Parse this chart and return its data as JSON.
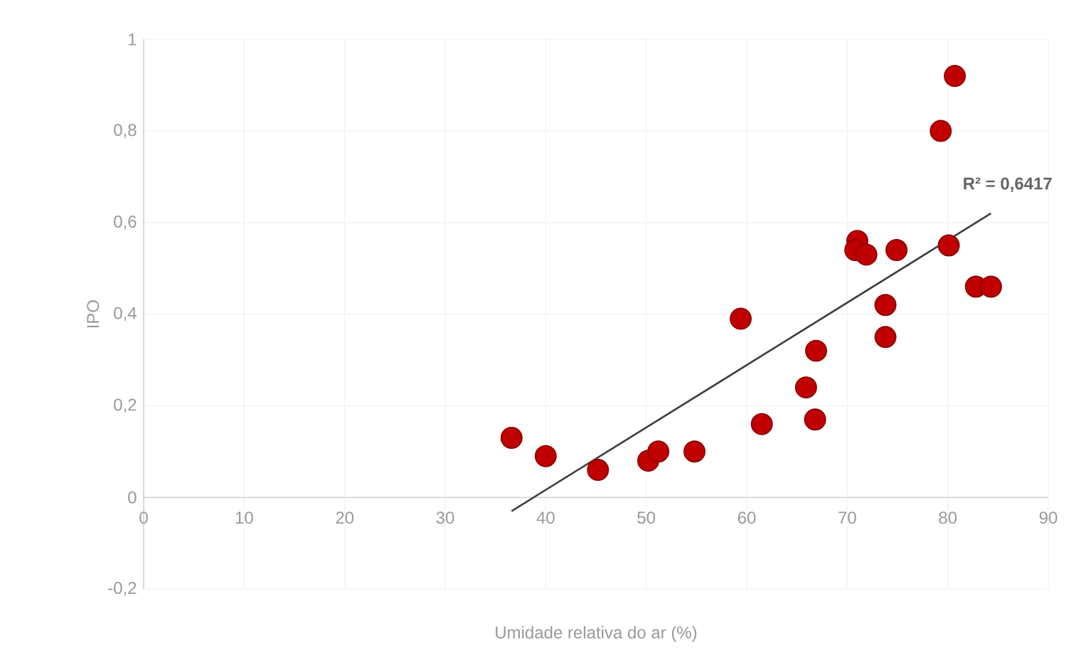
{
  "chart_data": {
    "type": "scatter",
    "xlabel": "Umidade relativa do ar (%)",
    "ylabel": "IPO",
    "xlim": [
      0,
      90
    ],
    "xticks": [
      0,
      10,
      20,
      30,
      40,
      50,
      60,
      70,
      80,
      90
    ],
    "ylim": [
      -0.2,
      1
    ],
    "yticks": [
      {
        "value": -0.2,
        "label": "-0,2"
      },
      0,
      {
        "value": 0.2,
        "label": "0,2"
      },
      {
        "value": 0.4,
        "label": "0,4"
      },
      {
        "value": 0.6,
        "label": "0,6"
      },
      {
        "value": 0.8,
        "label": "0,8"
      },
      1
    ],
    "grid": true,
    "series": [
      {
        "marker": "circle",
        "color": "#c00000",
        "x": [
          36.6,
          40.0,
          45.2,
          50.2,
          51.2,
          54.8,
          59.4,
          61.5,
          65.9,
          66.9,
          66.8,
          71.0,
          70.8,
          71.9,
          74.9,
          73.8,
          73.8,
          79.3,
          80.7,
          80.1,
          82.8,
          84.3
        ],
        "values": [
          0.13,
          0.09,
          0.06,
          0.08,
          0.1,
          0.1,
          0.39,
          0.16,
          0.24,
          0.32,
          0.17,
          0.56,
          0.54,
          0.53,
          0.54,
          0.42,
          0.35,
          0.8,
          0.92,
          0.55,
          0.46,
          0.46
        ]
      },
      {
        "type": "line",
        "marker": "none",
        "color": "#404040",
        "x": [
          36.6,
          84.3
        ],
        "values": [
          -0.03,
          0.62
        ]
      }
    ],
    "annotations": [
      "R² = 0,6417"
    ]
  }
}
